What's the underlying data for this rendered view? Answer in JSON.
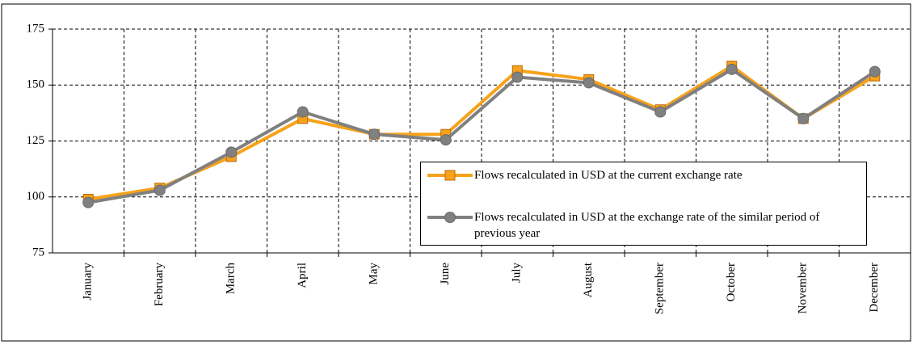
{
  "chart_data": {
    "type": "line",
    "categories": [
      "January",
      "February",
      "March",
      "April",
      "May",
      "June",
      "July",
      "August",
      "September",
      "October",
      "November",
      "December"
    ],
    "series": [
      {
        "name": "Flows recalculated in USD at the current exchange rate",
        "color": "#f7a21b",
        "marker": "square",
        "values": [
          99,
          104,
          118,
          135,
          128,
          128,
          156.5,
          152.5,
          139,
          158.5,
          135,
          154
        ]
      },
      {
        "name": "Flows recalculated in USD at the exchange rate of the similar period of previous year",
        "color": "#808080",
        "marker": "circle",
        "values": [
          97.5,
          103,
          120,
          138,
          128,
          125.5,
          153.5,
          151,
          138,
          157,
          135,
          156
        ]
      }
    ],
    "ylim": [
      75,
      175
    ],
    "yticks": [
      75,
      100,
      125,
      150,
      175
    ],
    "grid": true,
    "legend": "lower right"
  }
}
